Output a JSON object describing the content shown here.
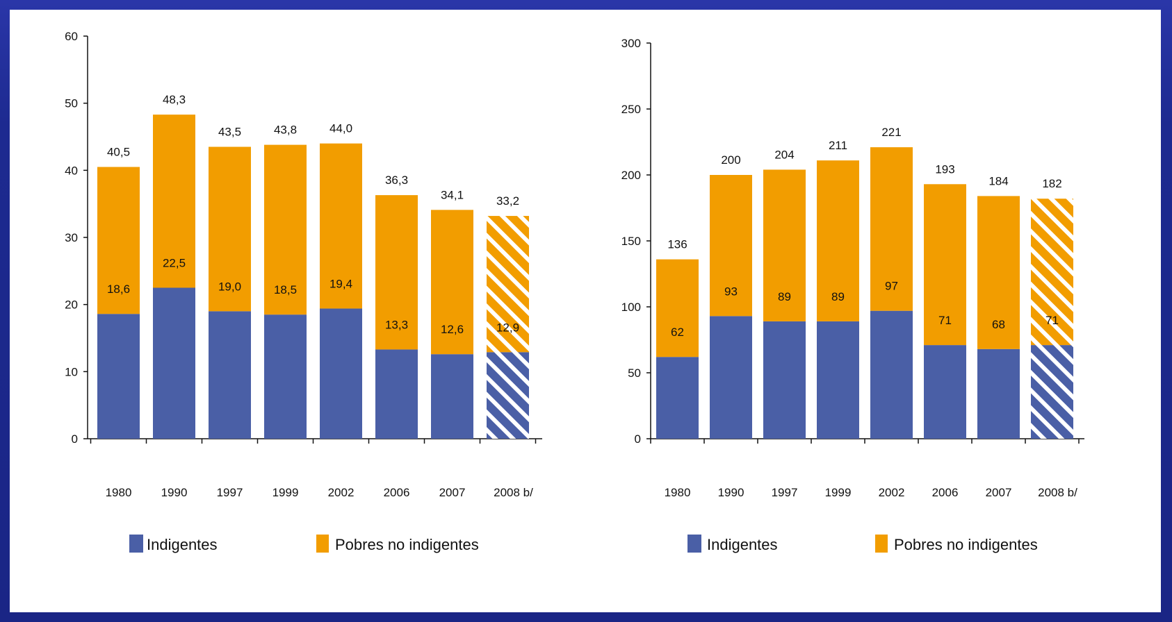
{
  "colors": {
    "indigentes": "#4a5fa6",
    "pobres_no_indigentes": "#f29d00",
    "hatch_stripe": "#ffffff",
    "background_frame": "#1f2a8c",
    "panel": "#ffffff"
  },
  "chart_data": [
    {
      "type": "bar",
      "stacked": true,
      "categories": [
        "1980",
        "1990",
        "1997",
        "1999",
        "2002",
        "2006",
        "2007",
        "2008 b/"
      ],
      "series": [
        {
          "name": "Indigentes",
          "values": [
            18.6,
            22.5,
            19.0,
            18.5,
            19.4,
            13.3,
            12.6,
            12.9
          ]
        },
        {
          "name": "Pobres no indigentes",
          "values": [
            21.9,
            25.8,
            24.5,
            25.3,
            24.6,
            23.0,
            21.5,
            20.3
          ]
        }
      ],
      "inner_labels": [
        "18,6",
        "22,5",
        "19,0",
        "18,5",
        "19,4",
        "13,3",
        "12,6",
        "12,9"
      ],
      "total_labels": [
        "40,5",
        "48,3",
        "43,5",
        "43,8",
        "44,0",
        "36,3",
        "34,1",
        "33,2"
      ],
      "hatched_categories": [
        "2008 b/"
      ],
      "ylim": [
        0,
        60
      ],
      "yticks": [
        0,
        10,
        20,
        30,
        40,
        50,
        60
      ],
      "grid": false,
      "legend": {
        "placement": "bottom",
        "entries": [
          "Indigentes",
          "Pobres no indigentes"
        ]
      }
    },
    {
      "type": "bar",
      "stacked": true,
      "categories": [
        "1980",
        "1990",
        "1997",
        "1999",
        "2002",
        "2006",
        "2007",
        "2008 b/"
      ],
      "series": [
        {
          "name": "Indigentes",
          "values": [
            62,
            93,
            89,
            89,
            97,
            71,
            68,
            71
          ]
        },
        {
          "name": "Pobres no indigentes",
          "values": [
            74,
            107,
            115,
            122,
            124,
            122,
            116,
            111
          ]
        }
      ],
      "inner_labels": [
        "62",
        "93",
        "89",
        "89",
        "97",
        "71",
        "68",
        "71"
      ],
      "total_labels": [
        "136",
        "200",
        "204",
        "211",
        "221",
        "193",
        "184",
        "182"
      ],
      "hatched_categories": [
        "2008 b/"
      ],
      "ylim": [
        0,
        300
      ],
      "yticks": [
        0,
        50,
        100,
        150,
        200,
        250,
        300
      ],
      "grid": false,
      "legend": {
        "placement": "bottom",
        "entries": [
          "Indigentes",
          "Pobres no indigentes"
        ]
      }
    }
  ]
}
